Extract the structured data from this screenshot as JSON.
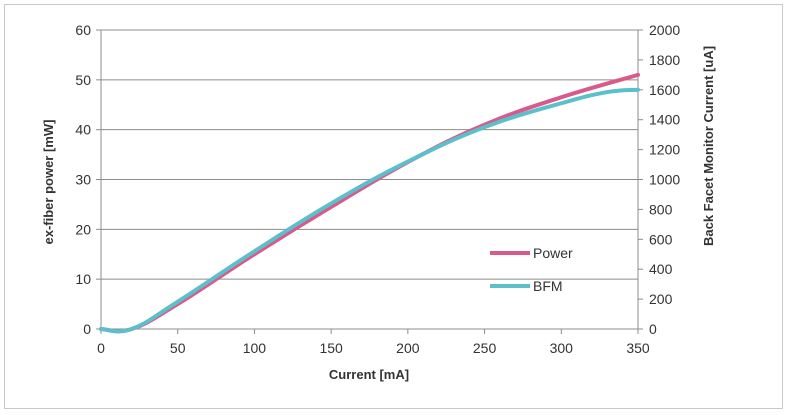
{
  "chart_data": {
    "type": "line",
    "title": "",
    "xlabel": "Current [mA]",
    "ylabel": "ex-fiber power [mW]",
    "y2label": "Back Facet Monitor Current [uA]",
    "xlim": [
      0,
      350
    ],
    "ylim": [
      0,
      60
    ],
    "y2lim": [
      0,
      2000
    ],
    "x_ticks": [
      "0",
      "50",
      "100",
      "150",
      "200",
      "250",
      "300",
      "350"
    ],
    "y_ticks": [
      "0",
      "10",
      "20",
      "30",
      "40",
      "50",
      "60"
    ],
    "y2_ticks": [
      "0",
      "200",
      "400",
      "600",
      "800",
      "1000",
      "1200",
      "1400",
      "1600",
      "1800",
      "2000"
    ],
    "grid": "horizontal",
    "legend_position": "bottom-right",
    "series": [
      {
        "name": "Power",
        "axis": "left",
        "color": "#d95a8a",
        "points": [
          [
            0,
            0
          ],
          [
            20,
            0
          ],
          [
            50,
            5
          ],
          [
            100,
            15
          ],
          [
            150,
            24.5
          ],
          [
            200,
            33.5
          ],
          [
            250,
            41
          ],
          [
            300,
            46.5
          ],
          [
            350,
            51
          ]
        ]
      },
      {
        "name": "BFM",
        "axis": "right",
        "color": "#5bbfcc",
        "points": [
          [
            0,
            0
          ],
          [
            20,
            0
          ],
          [
            50,
            183
          ],
          [
            100,
            520
          ],
          [
            150,
            840
          ],
          [
            200,
            1120
          ],
          [
            250,
            1350
          ],
          [
            300,
            1510
          ],
          [
            330,
            1585
          ],
          [
            350,
            1600
          ]
        ]
      }
    ]
  }
}
